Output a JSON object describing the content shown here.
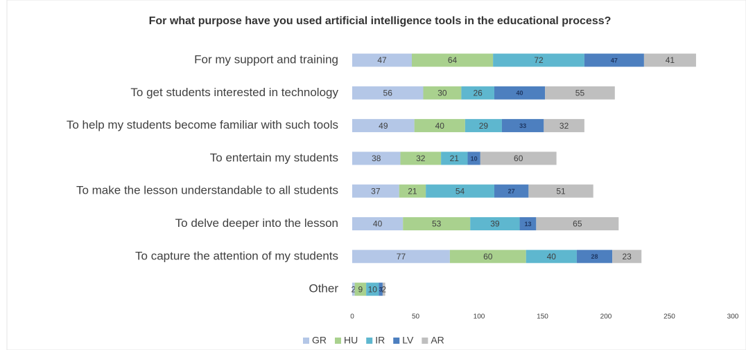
{
  "chart_data": {
    "type": "stacked_bar_horizontal",
    "title": "For what purpose have you used artificial intelligence tools in the educational process?",
    "categories": [
      "For my support and training",
      "To get students interested in technology",
      "To help my students become familiar with such tools",
      "To entertain my students",
      "To make the lesson understandable to all students",
      "To delve deeper into the lesson",
      "To capture the attention of my students",
      "Other"
    ],
    "series": [
      {
        "name": "GR",
        "color": "#b4c7e7",
        "values": [
          47,
          56,
          49,
          38,
          37,
          40,
          77,
          2
        ]
      },
      {
        "name": "HU",
        "color": "#a9d18e",
        "values": [
          64,
          30,
          40,
          32,
          21,
          53,
          60,
          9
        ]
      },
      {
        "name": "IR",
        "color": "#5eb7cf",
        "values": [
          72,
          26,
          29,
          21,
          54,
          39,
          40,
          10
        ]
      },
      {
        "name": "LV",
        "color": "#4d7fbf",
        "values": [
          47,
          40,
          33,
          10,
          27,
          13,
          28,
          3
        ]
      },
      {
        "name": "AR",
        "color": "#bfbfbf",
        "values": [
          41,
          55,
          32,
          60,
          51,
          65,
          23,
          2
        ]
      }
    ],
    "xlim": [
      0,
      300
    ],
    "xticks": [
      0,
      50,
      100,
      150,
      200,
      250,
      300
    ],
    "grid": false,
    "legend": "bottom"
  }
}
